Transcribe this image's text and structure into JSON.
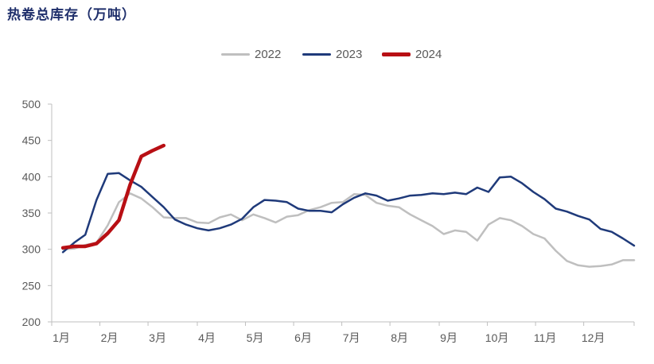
{
  "chart_data": {
    "type": "line",
    "title": "热卷总库存（万吨）",
    "ylim": [
      200,
      500
    ],
    "yticks": [
      200,
      250,
      300,
      350,
      400,
      450,
      500
    ],
    "xticks": [
      "1月",
      "2月",
      "3月",
      "4月",
      "5月",
      "6月",
      "7月",
      "8月",
      "9月",
      "10月",
      "11月",
      "12月"
    ],
    "xlim_weeks": [
      1,
      53
    ],
    "legend_position": "top-center",
    "grid": false,
    "series": [
      {
        "name": "2022",
        "color": "#bfbfbf",
        "x": [
          2,
          3,
          4,
          5,
          6,
          7,
          8,
          9,
          10,
          11,
          12,
          13,
          14,
          15,
          16,
          17,
          18,
          19,
          20,
          21,
          22,
          23,
          24,
          25,
          26,
          27,
          28,
          29,
          30,
          31,
          32,
          33,
          34,
          35,
          36,
          37,
          38,
          39,
          40,
          41,
          42,
          43,
          44,
          45,
          46,
          47,
          48,
          49,
          50,
          51,
          52,
          53
        ],
        "values": [
          300,
          301,
          306,
          309,
          333,
          365,
          377,
          370,
          358,
          344,
          343,
          343,
          337,
          336,
          344,
          348,
          340,
          348,
          343,
          337,
          345,
          347,
          354,
          358,
          364,
          365,
          376,
          375,
          364,
          360,
          358,
          348,
          340,
          332,
          321,
          326,
          324,
          312,
          334,
          343,
          340,
          332,
          321,
          315,
          298,
          284,
          278,
          276,
          277,
          279,
          285,
          285
        ]
      },
      {
        "name": "2023",
        "color": "#1f3a7a",
        "x": [
          2,
          3,
          4,
          5,
          6,
          7,
          8,
          9,
          10,
          11,
          12,
          13,
          14,
          15,
          16,
          17,
          18,
          19,
          20,
          21,
          22,
          23,
          24,
          25,
          26,
          27,
          28,
          29,
          30,
          31,
          32,
          33,
          34,
          35,
          36,
          37,
          38,
          39,
          40,
          41,
          42,
          43,
          44,
          45,
          46,
          47,
          48,
          49,
          50,
          51,
          52,
          53
        ],
        "values": [
          296,
          309,
          320,
          368,
          404,
          405,
          395,
          386,
          372,
          358,
          341,
          334,
          329,
          326,
          329,
          334,
          342,
          358,
          368,
          367,
          365,
          356,
          353,
          353,
          351,
          362,
          371,
          377,
          374,
          367,
          370,
          374,
          375,
          377,
          376,
          378,
          376,
          385,
          379,
          399,
          400,
          391,
          379,
          369,
          356,
          352,
          346,
          341,
          328,
          324,
          315,
          305
        ]
      },
      {
        "name": "2024",
        "color": "#b80f14",
        "x": [
          2,
          3,
          4,
          5,
          6,
          7,
          8,
          9,
          10,
          11
        ],
        "values": [
          302,
          304,
          304,
          308,
          322,
          340,
          389,
          428,
          436,
          443
        ]
      }
    ]
  }
}
